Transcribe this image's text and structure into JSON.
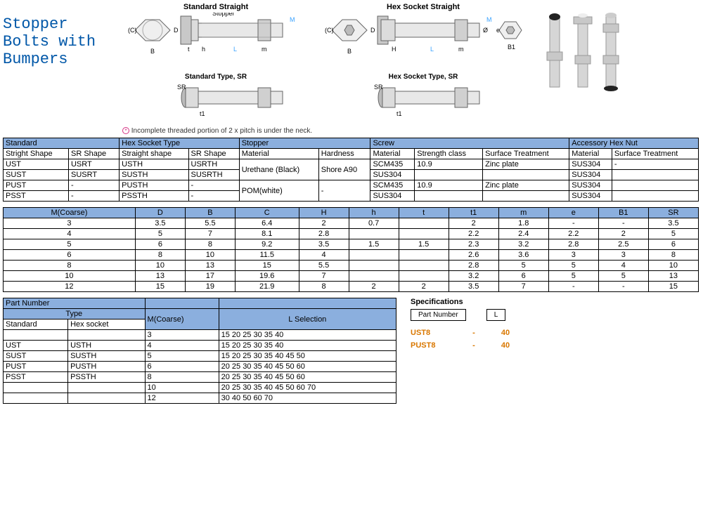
{
  "title": "Stopper Bolts with Bumpers",
  "diagrams": {
    "std_straight": "Standard Straight",
    "hex_straight": "Hex Socket Straight",
    "std_sr": "Standard Type, SR",
    "hex_sr": "Hex Socket Type, SR",
    "labels": {
      "B": "B",
      "C": "(C)",
      "D": "D",
      "t": "t",
      "h": "h",
      "m": "m",
      "M": "M",
      "L": "L",
      "Stopper": "Stopper",
      "H": "H",
      "t1": "t1",
      "e": "e",
      "dia": "Ø",
      "B1": "B1",
      "SR": "SR"
    }
  },
  "note": "Incomplete threaded portion of 2 x pitch is under the neck.",
  "table1": {
    "groupHeaders": [
      "Standard",
      "Hex Socket Type",
      "Stopper",
      "Screw",
      "Accessory Hex Nut"
    ],
    "subHeaders": [
      "Stright Shape",
      "SR Shape",
      "Straight shape",
      "SR Shape",
      "Material",
      "Hardness",
      "Material",
      "Strength class",
      "Surface Treatment",
      "Material",
      "Surface Treatment"
    ],
    "rows": [
      [
        "UST",
        "USRT",
        "USTH",
        "USRTH",
        "",
        "",
        "SCM435",
        "10.9",
        "Zinc plate",
        "SUS304",
        "-"
      ],
      [
        "SUST",
        "SUSRT",
        "SUSTH",
        "SUSRTH",
        "Urethane (Black)",
        "Shore A90",
        "SUS304",
        "",
        "",
        "SUS304",
        ""
      ],
      [
        "PUST",
        "-",
        "PUSTH",
        "-",
        "",
        "",
        "SCM435",
        "10.9",
        "Zinc plate",
        "SUS304",
        ""
      ],
      [
        "PSST",
        "-",
        "PSSTH",
        "-",
        "POM(white)",
        "-",
        "SUS304",
        "",
        "",
        "SUS304",
        ""
      ]
    ]
  },
  "table2": {
    "headers": [
      "M(Coarse)",
      "D",
      "B",
      "C",
      "H",
      "h",
      "t",
      "t1",
      "m",
      "e",
      "B1",
      "SR"
    ],
    "rows": [
      [
        "3",
        "3.5",
        "5.5",
        "6.4",
        "2",
        "0.7",
        "",
        "2",
        "1.8",
        "-",
        "-",
        "3.5"
      ],
      [
        "4",
        "5",
        "7",
        "8.1",
        "2.8",
        "",
        "",
        "2.2",
        "2.4",
        "2.2",
        "2",
        "5"
      ],
      [
        "5",
        "6",
        "8",
        "9.2",
        "3.5",
        "1.5",
        "1.5",
        "2.3",
        "3.2",
        "2.8",
        "2.5",
        "6"
      ],
      [
        "6",
        "8",
        "10",
        "11.5",
        "4",
        "",
        "",
        "2.6",
        "3.6",
        "3",
        "3",
        "8"
      ],
      [
        "8",
        "10",
        "13",
        "15",
        "5.5",
        "",
        "",
        "2.8",
        "5",
        "5",
        "4",
        "10"
      ],
      [
        "10",
        "13",
        "17",
        "19.6",
        "7",
        "",
        "",
        "3.2",
        "6",
        "5",
        "5",
        "13"
      ],
      [
        "12",
        "15",
        "19",
        "21.9",
        "8",
        "2",
        "2",
        "3.5",
        "7",
        "-",
        "-",
        "15"
      ]
    ]
  },
  "table3": {
    "groupHeaders": [
      "Part Number",
      "",
      ""
    ],
    "row2": [
      "Type",
      "M(Coarse)",
      "L Selection"
    ],
    "row3": [
      "Standard",
      "Hex socket",
      "3",
      "15 20 25 30 35 40"
    ],
    "body": [
      [
        "UST",
        "USTH",
        "4",
        "15 20 25 30 35 40"
      ],
      [
        "SUST",
        "SUSTH",
        "5",
        "15 20 25 30 35 40 45 50"
      ],
      [
        "PUST",
        "PUSTH",
        "6",
        "20 25 30 35 40 45 50 60"
      ],
      [
        "PSST",
        "PSSTH",
        "8",
        "20 25 30 35 40 45 50 60"
      ],
      [
        "",
        "",
        "10",
        "20 25 30 35 40 45 50 60 70"
      ],
      [
        "",
        "",
        "12",
        "30 40 50 60 70"
      ]
    ]
  },
  "specs": {
    "title": "Specifications",
    "headers": [
      "Part Number",
      "",
      "L"
    ],
    "rows": [
      [
        "UST8",
        "-",
        "40"
      ],
      [
        "PUST8",
        "-",
        "40"
      ]
    ]
  },
  "colors": {
    "header_bg": "#8bafde",
    "title_color": "#0057a8",
    "accent_orange": "#d97700",
    "dim_blue": "#39a2ff"
  }
}
